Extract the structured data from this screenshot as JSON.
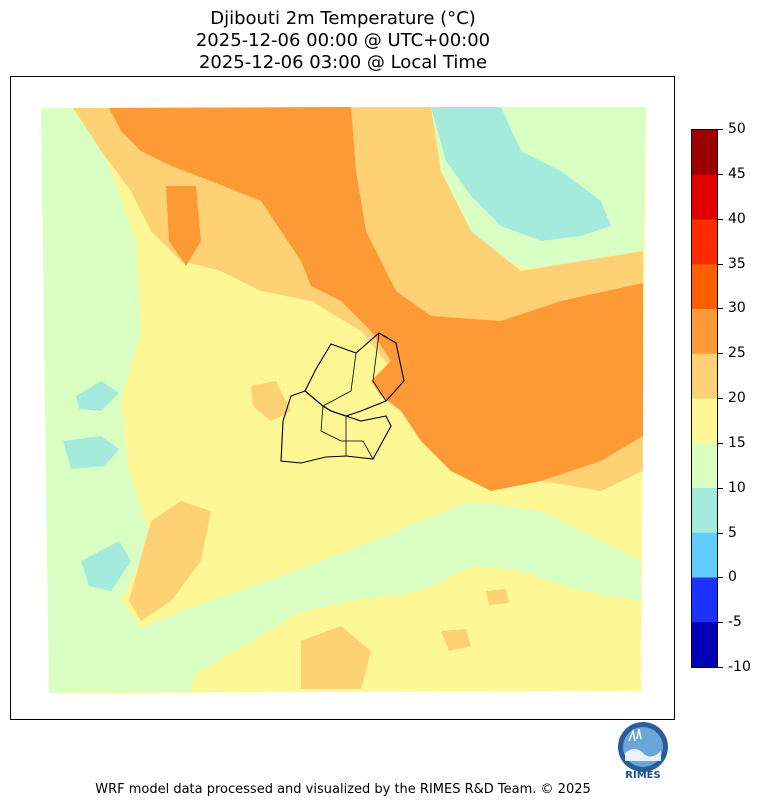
{
  "title": {
    "line1": "Djibouti 2m Temperature (°C)",
    "line2": "2025-12-06 00:00 @ UTC+00:00",
    "line3": "2025-12-06 03:00 @ Local Time"
  },
  "map": {
    "variable": "2m Temperature",
    "unit": "°C",
    "region": "Djibouti",
    "colors": {
      "t5_10": "#a4ebdd",
      "t10_15": "#d9ffc2",
      "t15_20": "#fdf796",
      "t20_25": "#fed175",
      "t25_30": "#fd9a36",
      "border": "#000000"
    }
  },
  "colorbar": {
    "ticks": [
      "50",
      "45",
      "40",
      "35",
      "30",
      "25",
      "20",
      "15",
      "10",
      "5",
      "0",
      "-5",
      "-10"
    ],
    "colors": [
      "#9d0000",
      "#e20000",
      "#ff2a00",
      "#ff5f00",
      "#fd9a36",
      "#fed175",
      "#fdf796",
      "#d9ffc2",
      "#a4ebdd",
      "#65ccff",
      "#1e32ff",
      "#0000b4"
    ]
  },
  "logo": {
    "text": "RIMES",
    "icon": "rimes-globe-logo"
  },
  "footer": {
    "credit": "WRF model data processed and visualized by the RIMES R&D Team. © 2025"
  }
}
